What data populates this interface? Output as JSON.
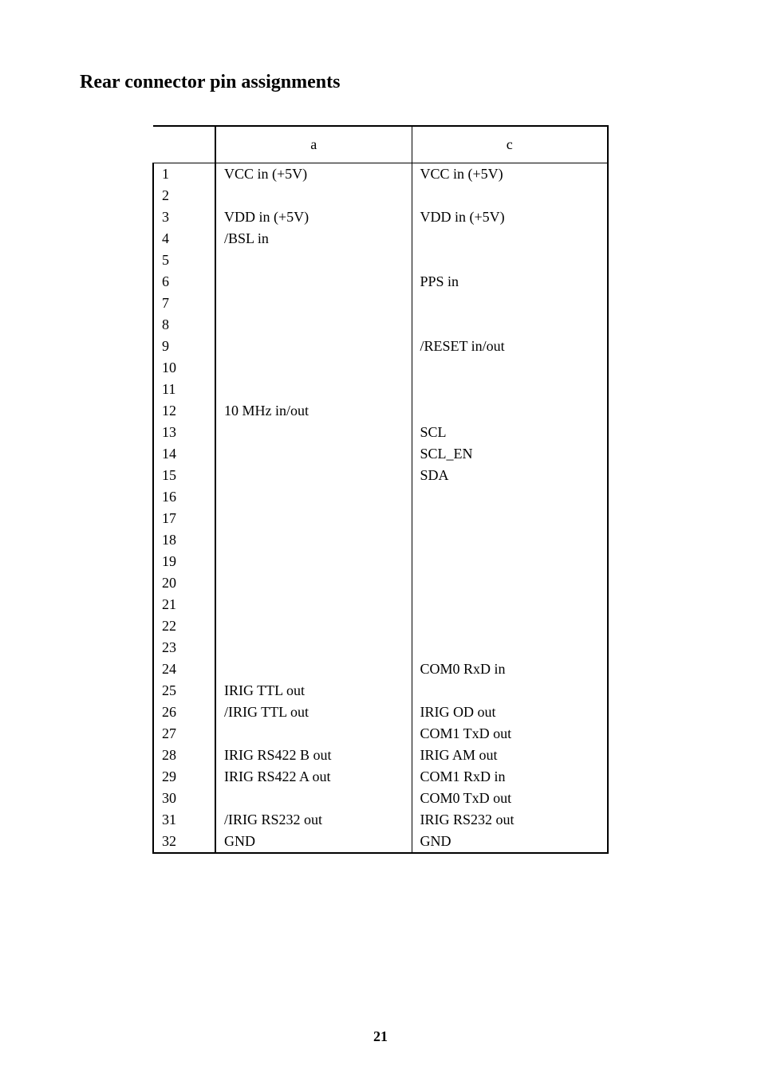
{
  "title": "Rear connector pin assignments",
  "page_number": "21",
  "table": {
    "header": {
      "a": "a",
      "c": "c"
    },
    "rows": [
      {
        "n": "1",
        "a": "VCC in (+5V)",
        "c": "VCC in  (+5V)"
      },
      {
        "n": "2",
        "a": "",
        "c": ""
      },
      {
        "n": "3",
        "a": "VDD in (+5V)",
        "c": "VDD in (+5V)"
      },
      {
        "n": "4",
        "a": "/BSL in",
        "c": ""
      },
      {
        "n": "5",
        "a": "",
        "c": ""
      },
      {
        "n": "6",
        "a": "",
        "c": "PPS in"
      },
      {
        "n": "7",
        "a": "",
        "c": ""
      },
      {
        "n": "8",
        "a": "",
        "c": ""
      },
      {
        "n": "9",
        "a": "",
        "c": "/RESET in/out"
      },
      {
        "n": "10",
        "a": "",
        "c": ""
      },
      {
        "n": "11",
        "a": "",
        "c": ""
      },
      {
        "n": "12",
        "a": "10 MHz in/out",
        "c": ""
      },
      {
        "n": "13",
        "a": "",
        "c": "SCL"
      },
      {
        "n": "14",
        "a": "",
        "c": "SCL_EN"
      },
      {
        "n": "15",
        "a": "",
        "c": "SDA"
      },
      {
        "n": "16",
        "a": "",
        "c": ""
      },
      {
        "n": "17",
        "a": "",
        "c": ""
      },
      {
        "n": "18",
        "a": "",
        "c": ""
      },
      {
        "n": "19",
        "a": "",
        "c": ""
      },
      {
        "n": "20",
        "a": "",
        "c": ""
      },
      {
        "n": "21",
        "a": "",
        "c": ""
      },
      {
        "n": "22",
        "a": "",
        "c": ""
      },
      {
        "n": "23",
        "a": "",
        "c": ""
      },
      {
        "n": "24",
        "a": "",
        "c": "COM0  RxD in"
      },
      {
        "n": "25",
        "a": "IRIG TTL out",
        "c": ""
      },
      {
        "n": "26",
        "a": "/IRIG TTL out",
        "c": "IRIG OD out"
      },
      {
        "n": "27",
        "a": "",
        "c": "COM1 TxD out"
      },
      {
        "n": "28",
        "a": "IRIG RS422 B out",
        "c": "IRIG AM out"
      },
      {
        "n": "29",
        "a": "IRIG RS422 A out",
        "c": "COM1  RxD in"
      },
      {
        "n": "30",
        "a": "",
        "c": "COM0  TxD out"
      },
      {
        "n": "31",
        "a": "/IRIG RS232 out",
        "c": "IRIG RS232 out"
      },
      {
        "n": "32",
        "a": "GND",
        "c": "GND"
      }
    ]
  }
}
